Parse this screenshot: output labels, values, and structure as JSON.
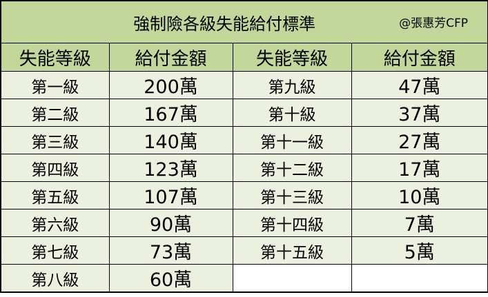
{
  "title": "強制險各級失能給付標準",
  "author": "@張惠芳CFP",
  "headers": [
    "失能等級",
    "給付金額",
    "失能等級",
    "給付金額"
  ],
  "left": [
    {
      "level": "第一級",
      "amount": "200萬"
    },
    {
      "level": "第二級",
      "amount": "167萬"
    },
    {
      "level": "第三級",
      "amount": "140萬"
    },
    {
      "level": "第四級",
      "amount": "123萬"
    },
    {
      "level": "第五級",
      "amount": "107萬"
    },
    {
      "level": "第六級",
      "amount": "90萬"
    },
    {
      "level": "第七級",
      "amount": "73萬"
    },
    {
      "level": "第八級",
      "amount": "60萬"
    }
  ],
  "right": [
    {
      "level": "第九級",
      "amount": "47萬"
    },
    {
      "level": "第十級",
      "amount": "37萬"
    },
    {
      "level": "第十一級",
      "amount": "27萬"
    },
    {
      "level": "第十二級",
      "amount": "17萬"
    },
    {
      "level": "第十三級",
      "amount": "10萬"
    },
    {
      "level": "第十四級",
      "amount": "7萬"
    },
    {
      "level": "第十五級",
      "amount": "5萬"
    }
  ],
  "colors": {
    "header": "#c4d79b",
    "row": "#ebf1de"
  }
}
